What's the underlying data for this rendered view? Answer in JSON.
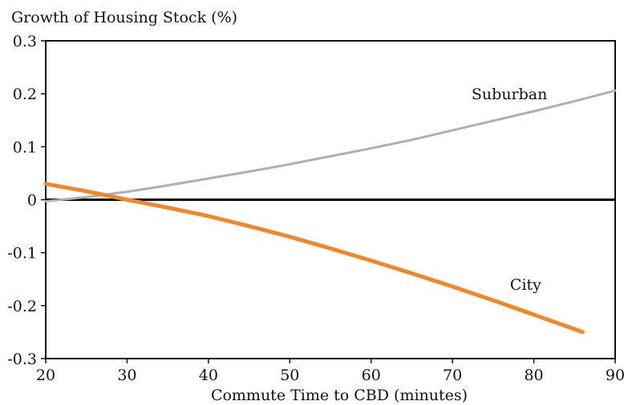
{
  "chart_data": {
    "type": "line",
    "title": "Growth of Housing Stock (%)",
    "xlabel": "Commute Time to CBD (minutes)",
    "ylabel": "",
    "xlim": [
      20,
      90
    ],
    "ylim": [
      -0.3,
      0.3
    ],
    "x_ticks": [
      20,
      30,
      40,
      50,
      60,
      70,
      80,
      90
    ],
    "x_tick_labels": [
      "20",
      "30",
      "40",
      "50",
      "60",
      "70",
      "80",
      "90"
    ],
    "y_ticks": [
      0.3,
      0.2,
      0.1,
      0,
      -0.1,
      -0.2,
      -0.3
    ],
    "y_tick_labels": [
      "0.3",
      "0.2",
      "0.1",
      "0",
      "-0.1",
      "-0.2",
      "-0.3"
    ],
    "grid": false,
    "zero_line": true,
    "series": [
      {
        "name": "Suburban",
        "color": "#b0aeb5",
        "x": [
          20,
          25,
          30,
          35,
          40,
          45,
          50,
          55,
          60,
          65,
          70,
          75,
          80,
          85,
          90
        ],
        "y": [
          -0.003,
          0.005,
          0.015,
          0.027,
          0.04,
          0.053,
          0.067,
          0.082,
          0.097,
          0.113,
          0.131,
          0.149,
          0.167,
          0.186,
          0.206
        ]
      },
      {
        "name": "City",
        "color": "#f0882a",
        "x": [
          20,
          25,
          30,
          35,
          40,
          45,
          50,
          55,
          60,
          65,
          70,
          75,
          80,
          86
        ],
        "y": [
          0.03,
          0.016,
          0.0,
          -0.015,
          -0.031,
          -0.05,
          -0.07,
          -0.092,
          -0.115,
          -0.139,
          -0.164,
          -0.19,
          -0.217,
          -0.25
        ]
      }
    ],
    "annotations": [
      {
        "text": "Suburban",
        "x": 77,
        "y": 0.19
      },
      {
        "text": "City",
        "x": 79,
        "y": -0.17
      }
    ]
  }
}
